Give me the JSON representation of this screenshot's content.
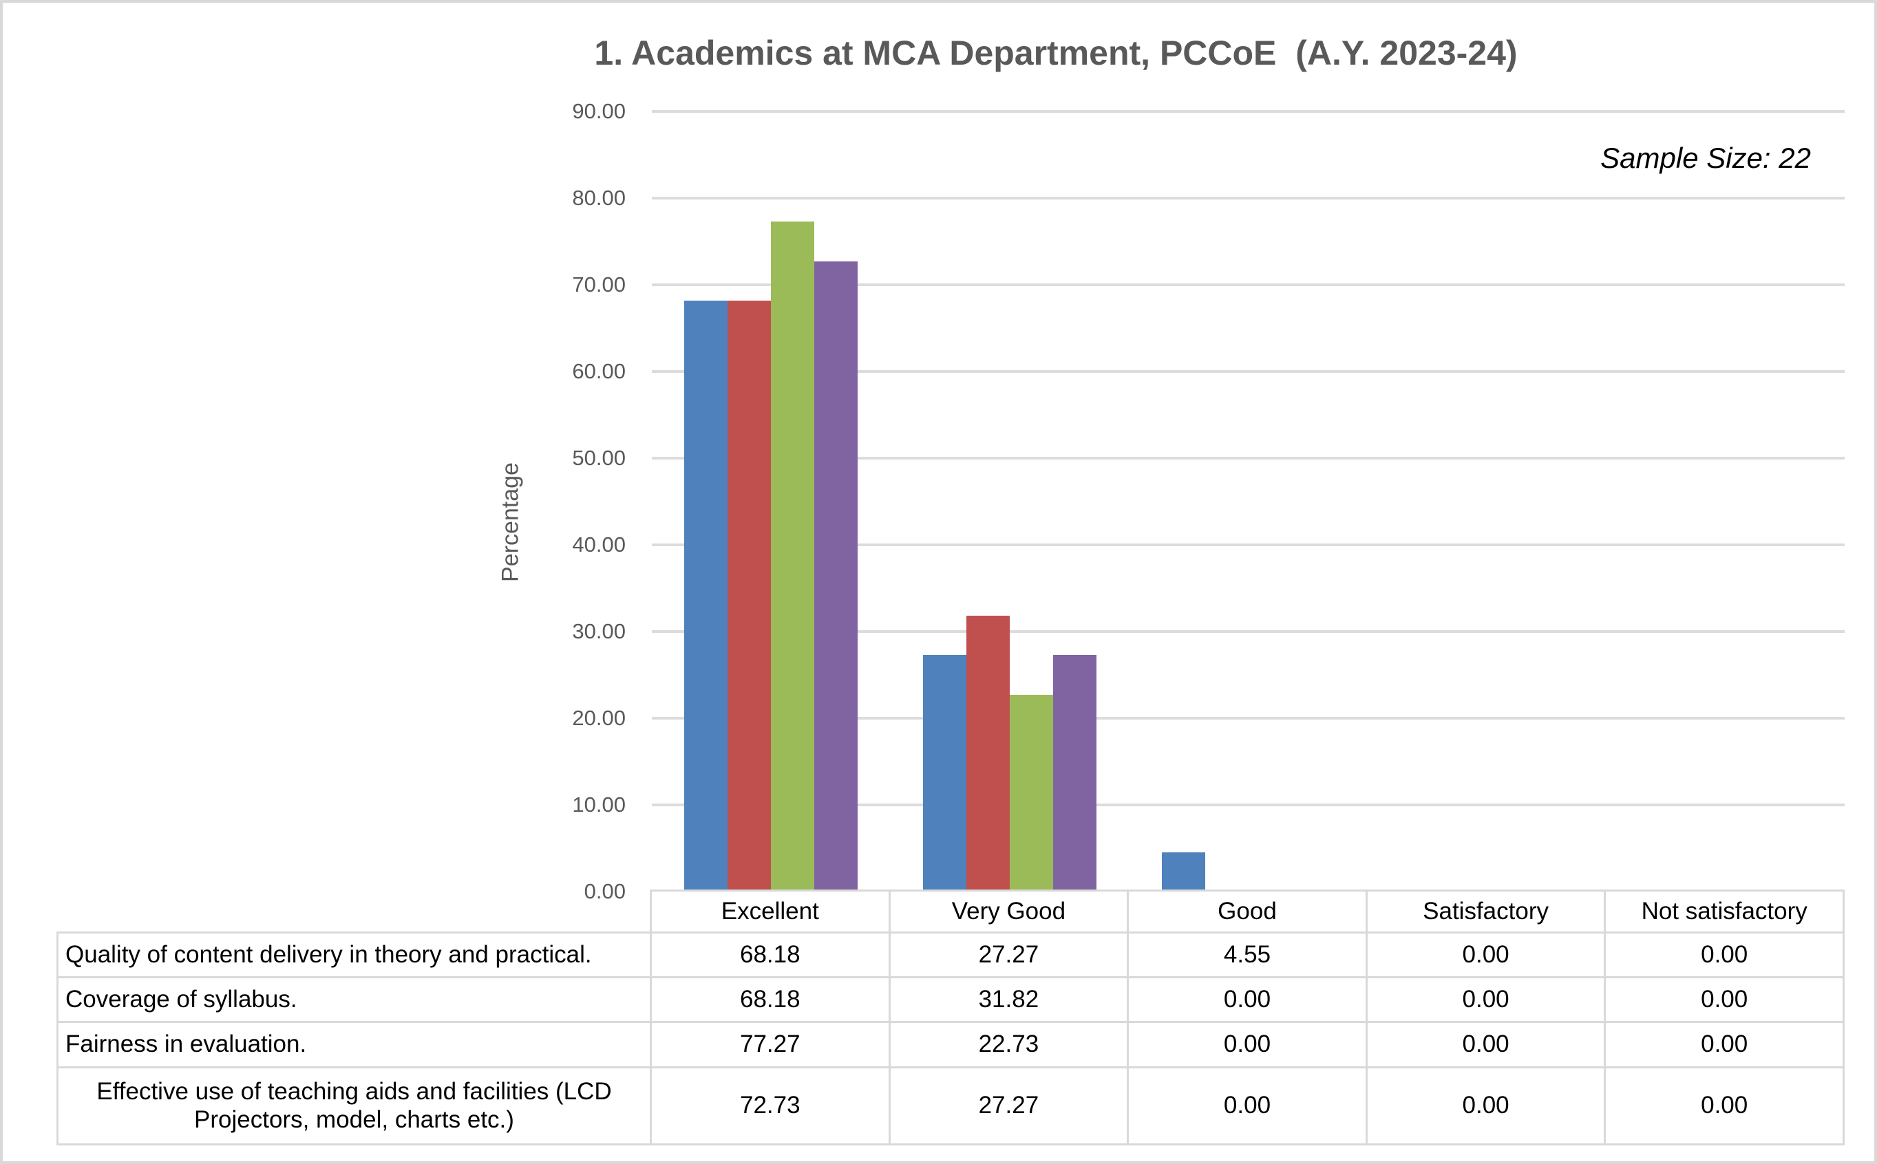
{
  "chart_data": {
    "type": "bar",
    "title": "1. Academics at MCA Department, PCCoE  (A.Y. 2023-24)",
    "annotation": "Sample Size: 22",
    "xlabel": "",
    "ylabel": "Percentage",
    "ylim": [
      0,
      90
    ],
    "ytick_step": 10,
    "ytick_decimals": 2,
    "grid": "horizontal",
    "legend_position": "none",
    "data_table_shown": true,
    "categories": [
      "Excellent",
      "Very Good",
      "Good",
      "Satisfactory",
      "Not satisfactory"
    ],
    "series": [
      {
        "name": "Quality of content delivery in theory and practical.",
        "color": "#4F81BD",
        "values": [
          68.18,
          27.27,
          4.55,
          0.0,
          0.0
        ]
      },
      {
        "name": "Coverage of syllabus.",
        "color": "#C0504D",
        "values": [
          68.18,
          31.82,
          0.0,
          0.0,
          0.0
        ]
      },
      {
        "name": "Fairness in evaluation.",
        "color": "#9BBB59",
        "values": [
          77.27,
          22.73,
          0.0,
          0.0,
          0.0
        ]
      },
      {
        "name": "Effective use of teaching aids and facilities (LCD Projectors, model, charts etc.)",
        "color": "#8064A2",
        "values": [
          72.73,
          27.27,
          0.0,
          0.0,
          0.0
        ]
      }
    ],
    "style": {
      "gridline_color": "#dcdcdc",
      "table_border_color": "#d9d9d9",
      "axis_text_color": "#595959",
      "title_color": "#595959",
      "value_text_color": "#000000"
    }
  }
}
